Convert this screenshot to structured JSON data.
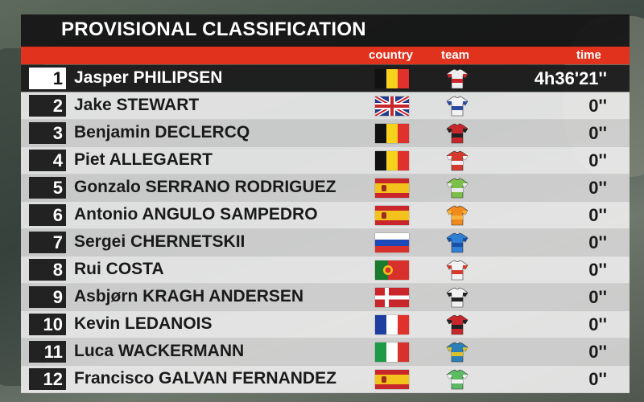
{
  "title": "PROVISIONAL CLASSIFICATION",
  "headers": {
    "country": "country",
    "team": "team",
    "time": "time"
  },
  "rows": [
    {
      "pos": "1",
      "name": "Jasper PHILIPSEN",
      "time": "4h36'21''",
      "flag": "belgium",
      "jersey": [
        "#eeeeee",
        "#c8262b"
      ]
    },
    {
      "pos": "2",
      "name": "Jake STEWART",
      "time": "0''",
      "flag": "united-kingdom",
      "jersey": [
        "#f2f2f2",
        "#2a4da0"
      ]
    },
    {
      "pos": "3",
      "name": "Benjamin DECLERCQ",
      "time": "0''",
      "flag": "belgium",
      "jersey": [
        "#c8262b",
        "#222222"
      ]
    },
    {
      "pos": "4",
      "name": "Piet ALLEGAERT",
      "time": "0''",
      "flag": "belgium",
      "jersey": [
        "#d43b2e",
        "#f2f2f2"
      ]
    },
    {
      "pos": "5",
      "name": "Gonzalo SERRANO RODRIGUEZ",
      "time": "0''",
      "flag": "spain",
      "jersey": [
        "#7cc04a",
        "#e8e8e8"
      ]
    },
    {
      "pos": "6",
      "name": "Antonio ANGULO SAMPEDRO",
      "time": "0''",
      "flag": "spain",
      "jersey": [
        "#f08a1c",
        "#f6b13a"
      ]
    },
    {
      "pos": "7",
      "name": "Sergei CHERNETSKII",
      "time": "0''",
      "flag": "russia",
      "jersey": [
        "#2f7fd6",
        "#1a4fa3"
      ]
    },
    {
      "pos": "8",
      "name": "Rui COSTA",
      "time": "0''",
      "flag": "portugal",
      "jersey": [
        "#f2f2f2",
        "#d43b2e"
      ]
    },
    {
      "pos": "9",
      "name": "Asbjørn KRAGH ANDERSEN",
      "time": "0''",
      "flag": "denmark",
      "jersey": [
        "#f2f2f2",
        "#222222"
      ]
    },
    {
      "pos": "10",
      "name": "Kevin LEDANOIS",
      "time": "0''",
      "flag": "france",
      "jersey": [
        "#c8262b",
        "#222222"
      ]
    },
    {
      "pos": "11",
      "name": "Luca WACKERMANN",
      "time": "0''",
      "flag": "italy",
      "jersey": [
        "#2a7fb8",
        "#d9c12c"
      ]
    },
    {
      "pos": "12",
      "name": "Francisco GALVAN FERNANDEZ",
      "time": "0''",
      "flag": "spain",
      "jersey": [
        "#5dbb63",
        "#f2f2f2"
      ]
    }
  ],
  "colors": {
    "accent": "#e0321c",
    "title_bg": "#141414"
  }
}
